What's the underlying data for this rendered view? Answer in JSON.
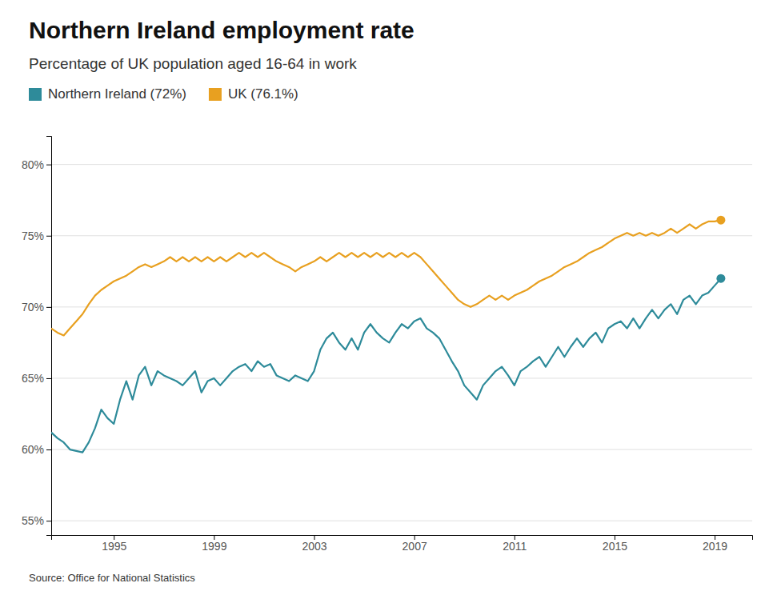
{
  "chart_data": {
    "type": "line",
    "title": "Northern Ireland employment rate",
    "subtitle": "Percentage of UK population aged 16-64 in work",
    "source": "Source: Office for National Statistics",
    "x": [
      1992.5,
      1992.75,
      1993,
      1993.25,
      1993.5,
      1993.75,
      1994,
      1994.25,
      1994.5,
      1994.75,
      1995,
      1995.25,
      1995.5,
      1995.75,
      1996,
      1996.25,
      1996.5,
      1996.75,
      1997,
      1997.25,
      1997.5,
      1997.75,
      1998,
      1998.25,
      1998.5,
      1998.75,
      1999,
      1999.25,
      1999.5,
      1999.75,
      2000,
      2000.25,
      2000.5,
      2000.75,
      2001,
      2001.25,
      2001.5,
      2001.75,
      2002,
      2002.25,
      2002.5,
      2002.75,
      2003,
      2003.25,
      2003.5,
      2003.75,
      2004,
      2004.25,
      2004.5,
      2004.75,
      2005,
      2005.25,
      2005.5,
      2005.75,
      2006,
      2006.25,
      2006.5,
      2006.75,
      2007,
      2007.25,
      2007.5,
      2007.75,
      2008,
      2008.25,
      2008.5,
      2008.75,
      2009,
      2009.25,
      2009.5,
      2009.75,
      2010,
      2010.25,
      2010.5,
      2010.75,
      2011,
      2011.25,
      2011.5,
      2011.75,
      2012,
      2012.25,
      2012.5,
      2012.75,
      2013,
      2013.25,
      2013.5,
      2013.75,
      2014,
      2014.25,
      2014.5,
      2014.75,
      2015,
      2015.25,
      2015.5,
      2015.75,
      2016,
      2016.25,
      2016.5,
      2016.75,
      2017,
      2017.25,
      2017.5,
      2017.75,
      2018,
      2018.25,
      2018.5,
      2018.75,
      2019,
      2019.25
    ],
    "series": [
      {
        "name": "Northern Ireland (72%)",
        "color": "#2E8B9A",
        "values": [
          61.2,
          60.8,
          60.5,
          60.0,
          59.9,
          59.8,
          60.5,
          61.5,
          62.8,
          62.2,
          61.8,
          63.5,
          64.8,
          63.5,
          65.2,
          65.8,
          64.5,
          65.5,
          65.2,
          65.0,
          64.8,
          64.5,
          65.0,
          65.5,
          64.0,
          64.8,
          65.0,
          64.5,
          65.0,
          65.5,
          65.8,
          66.0,
          65.5,
          66.2,
          65.8,
          66.0,
          65.2,
          65.0,
          64.8,
          65.2,
          65.0,
          64.8,
          65.5,
          67.0,
          67.8,
          68.2,
          67.5,
          67.0,
          67.8,
          67.0,
          68.2,
          68.8,
          68.2,
          67.8,
          67.5,
          68.2,
          68.8,
          68.5,
          69.0,
          69.2,
          68.5,
          68.2,
          67.8,
          67.0,
          66.2,
          65.5,
          64.5,
          64.0,
          63.5,
          64.5,
          65.0,
          65.5,
          65.8,
          65.2,
          64.5,
          65.5,
          65.8,
          66.2,
          66.5,
          65.8,
          66.5,
          67.2,
          66.5,
          67.2,
          67.8,
          67.2,
          67.8,
          68.2,
          67.5,
          68.5,
          68.8,
          69.0,
          68.5,
          69.2,
          68.5,
          69.2,
          69.8,
          69.2,
          69.8,
          70.2,
          69.5,
          70.5,
          70.8,
          70.2,
          70.8,
          71.0,
          71.5,
          72.0
        ]
      },
      {
        "name": "UK (76.1%)",
        "color": "#E8A020",
        "values": [
          68.5,
          68.2,
          68.0,
          68.5,
          69.0,
          69.5,
          70.2,
          70.8,
          71.2,
          71.5,
          71.8,
          72.0,
          72.2,
          72.5,
          72.8,
          73.0,
          72.8,
          73.0,
          73.2,
          73.5,
          73.2,
          73.5,
          73.2,
          73.5,
          73.2,
          73.5,
          73.2,
          73.5,
          73.2,
          73.5,
          73.8,
          73.5,
          73.8,
          73.5,
          73.8,
          73.5,
          73.2,
          73.0,
          72.8,
          72.5,
          72.8,
          73.0,
          73.2,
          73.5,
          73.2,
          73.5,
          73.8,
          73.5,
          73.8,
          73.5,
          73.8,
          73.5,
          73.8,
          73.5,
          73.8,
          73.5,
          73.8,
          73.5,
          73.8,
          73.5,
          73.0,
          72.5,
          72.0,
          71.5,
          71.0,
          70.5,
          70.2,
          70.0,
          70.2,
          70.5,
          70.8,
          70.5,
          70.8,
          70.5,
          70.8,
          71.0,
          71.2,
          71.5,
          71.8,
          72.0,
          72.2,
          72.5,
          72.8,
          73.0,
          73.2,
          73.5,
          73.8,
          74.0,
          74.2,
          74.5,
          74.8,
          75.0,
          75.2,
          75.0,
          75.2,
          75.0,
          75.2,
          75.0,
          75.2,
          75.5,
          75.2,
          75.5,
          75.8,
          75.5,
          75.8,
          76.0,
          76.0,
          76.1
        ]
      }
    ],
    "xlim": [
      1992.5,
      2020.5
    ],
    "xticks": [
      1995,
      1999,
      2003,
      2007,
      2011,
      2015,
      2019
    ],
    "ylim": [
      54,
      82
    ],
    "yticks": [
      {
        "value": 55,
        "label": "55%"
      },
      {
        "value": 60,
        "label": "60%"
      },
      {
        "value": 65,
        "label": "65%"
      },
      {
        "value": 70,
        "label": "70%"
      },
      {
        "value": 75,
        "label": "75%"
      },
      {
        "value": 80,
        "label": "80%"
      }
    ],
    "grid": true
  }
}
